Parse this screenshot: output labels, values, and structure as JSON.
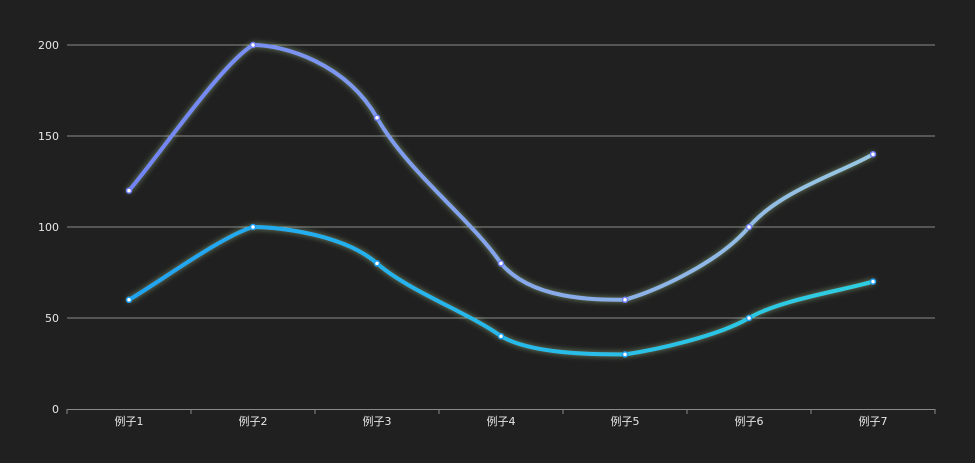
{
  "chart_data": {
    "type": "line",
    "smooth": true,
    "categories": [
      "例子1",
      "例子2",
      "例子3",
      "例子4",
      "例子5",
      "例子6",
      "例子7"
    ],
    "ylim": [
      0,
      200
    ],
    "yticks": [
      0,
      50,
      100,
      150,
      200
    ],
    "grid": true,
    "series": [
      {
        "values": [
          120,
          200,
          160,
          80,
          60,
          100,
          140
        ],
        "color_start": "#6f7ef8",
        "color_end": "#9ccde0"
      },
      {
        "values": [
          60,
          100,
          80,
          40,
          30,
          50,
          70
        ],
        "color_start": "#1ea0f5",
        "color_end": "#30d2e0"
      }
    ],
    "glow_color": "#b8e6a0",
    "background": "#202020"
  }
}
